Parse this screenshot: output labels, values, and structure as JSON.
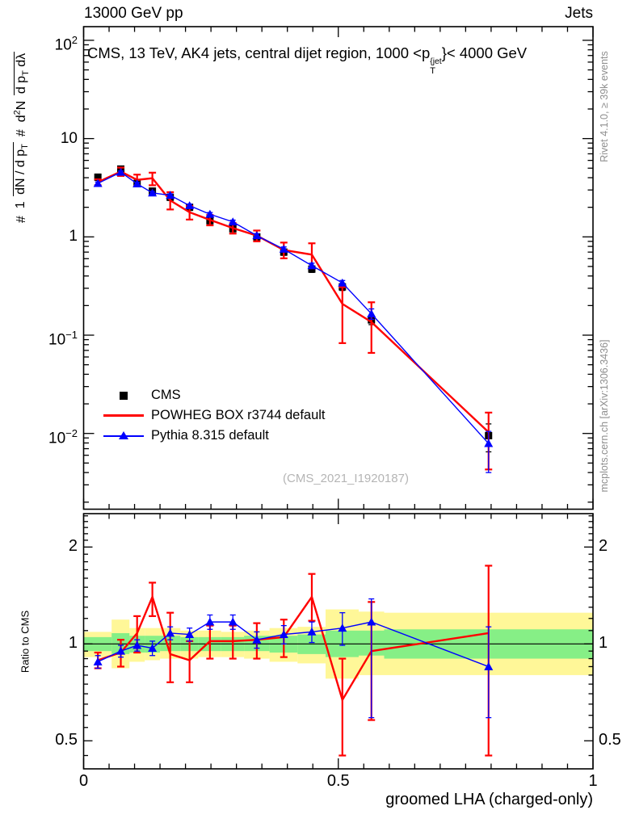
{
  "header": {
    "left": "13000 GeV pp",
    "right": "Jets"
  },
  "plot_title": {
    "pre": "CMS, 13 TeV, AK4 jets, central dijet region, 1000 <p",
    "sup": "{jet",
    "sub": "T",
    "post": "}< 4000 GeV"
  },
  "y_axis_label": {
    "hash1": "#",
    "frac1_num": "1",
    "frac1_den_pre": "dN / d p",
    "frac1_den_sub": "T",
    "hash2": "#",
    "frac2_num_pre": "d",
    "frac2_num_sup": "2",
    "frac2_num_post": "N",
    "frac2_den_pre": "d p",
    "frac2_den_sub": "T",
    "frac2_den_post": " dλ"
  },
  "x_axis_label": "groomed LHA (charged-only)",
  "ratio_axis_label": "Ratio to CMS",
  "credits": {
    "top": "Rivet 4.1.0, ≥ 39k events",
    "bottom": "mcplots.cern.ch [arXiv:1306.3436]"
  },
  "watermark": "(CMS_2021_I1920187)",
  "legend": {
    "items": [
      {
        "label": "CMS",
        "marker": "square"
      },
      {
        "label": "POWHEG BOX r3744 default",
        "marker": "line"
      },
      {
        "label": "Pythia 8.315 default",
        "marker": "triangle-line"
      }
    ]
  },
  "colors": {
    "cms": "#000000",
    "powheg": "#ff0000",
    "pythia": "#0000ff",
    "band_yellow": "#fff798",
    "band_green": "#86ef86",
    "credits": "#8f8f8f",
    "watermark": "#b5b5b5"
  },
  "axes": {
    "x_ticks": [
      {
        "v": 0,
        "label": "0"
      },
      {
        "v": 0.5,
        "label": "0.5"
      },
      {
        "v": 1,
        "label": "1"
      }
    ],
    "main_y_ticks": [
      {
        "v": 100,
        "base": "10",
        "exp": "2"
      },
      {
        "v": 10,
        "base": "10",
        "exp": ""
      },
      {
        "v": 1,
        "base": "1",
        "exp": ""
      },
      {
        "v": 0.1,
        "base": "10",
        "exp": "−1"
      },
      {
        "v": 0.01,
        "base": "10",
        "exp": "−2"
      }
    ],
    "ratio_y_ticks": [
      {
        "v": 2,
        "label": "2"
      },
      {
        "v": 1,
        "label": "1"
      },
      {
        "v": 0.5,
        "label": "0.5"
      }
    ]
  },
  "chart_data": {
    "type": "line",
    "title": "CMS, 13 TeV, AK4 jets, central dijet region, 1000 <p_T^{jet}< 4000 GeV",
    "xlabel": "groomed LHA (charged-only)",
    "ylabel": "# 1/(dN/dp_T) # d2N/(dp_T dlambda)",
    "ratio_ylabel": "Ratio to CMS",
    "x_range": [
      0,
      1
    ],
    "y_scale": "log",
    "y_range_main": [
      0.0017,
      137
    ],
    "ratio_scale": "log",
    "ratio_range": [
      0.41,
      2.54
    ],
    "legend_position": "left-middle",
    "grid": false,
    "bin_edges": [
      0,
      0.055,
      0.09,
      0.12,
      0.15,
      0.19,
      0.225,
      0.27,
      0.315,
      0.365,
      0.42,
      0.475,
      0.54,
      0.59,
      1.0
    ],
    "x": [
      0.028,
      0.073,
      0.105,
      0.135,
      0.17,
      0.208,
      0.248,
      0.293,
      0.34,
      0.393,
      0.448,
      0.508,
      0.565,
      0.795
    ],
    "series": [
      {
        "name": "CMS",
        "role": "data",
        "marker": "square",
        "color": "#000000",
        "values": [
          4.05,
          4.9,
          3.5,
          2.92,
          2.53,
          2.0,
          1.46,
          1.21,
          1.0,
          0.7,
          0.47,
          0.31,
          0.143,
          0.0095
        ],
        "yerr": [
          0.3,
          0.35,
          0.26,
          0.21,
          0.18,
          0.14,
          0.1,
          0.085,
          0.07,
          0.05,
          0.035,
          0.025,
          0.015,
          0.003
        ]
      },
      {
        "name": "POWHEG BOX r3744 default",
        "role": "mc",
        "marker": "none",
        "color": "#ff0000",
        "values": [
          3.6,
          4.62,
          3.8,
          3.95,
          2.35,
          1.78,
          1.49,
          1.23,
          1.03,
          0.735,
          0.66,
          0.208,
          0.136,
          0.0103
        ],
        "yerr": [
          [
            0.25,
            0.25
          ],
          [
            0.45,
            0.45
          ],
          [
            0.5,
            0.5
          ],
          [
            0.55,
            0.6
          ],
          [
            0.5,
            0.45
          ],
          [
            0.28,
            0.28
          ],
          [
            0.18,
            0.18
          ],
          [
            0.15,
            0.15
          ],
          [
            0.13,
            0.13
          ],
          [
            0.14,
            0.13
          ],
          [
            0.2,
            0.18
          ],
          [
            0.1,
            0.125
          ],
          [
            0.08,
            0.07
          ],
          [
            0.006,
            0.006
          ]
        ],
        "ratio": [
          0.89,
          0.94,
          1.08,
          1.4,
          0.93,
          0.89,
          1.02,
          1.02,
          1.03,
          1.05,
          1.4,
          0.67,
          0.95,
          1.08
        ],
        "ratio_err": [
          [
            0.05,
            0.05
          ],
          [
            0.09,
            0.09
          ],
          [
            0.14,
            0.14
          ],
          [
            0.15,
            0.18
          ],
          [
            0.32,
            0.17
          ],
          [
            0.13,
            0.13
          ],
          [
            0.12,
            0.12
          ],
          [
            0.12,
            0.12
          ],
          [
            0.13,
            0.13
          ],
          [
            0.14,
            0.14
          ],
          [
            0.25,
            0.22
          ],
          [
            0.23,
            0.22
          ],
          [
            0.4,
            0.37
          ],
          [
            0.67,
            0.63
          ]
        ]
      },
      {
        "name": "Pythia 8.315 default",
        "role": "mc",
        "marker": "triangle",
        "color": "#0000ff",
        "values": [
          3.5,
          4.55,
          3.47,
          2.8,
          2.65,
          2.08,
          1.7,
          1.42,
          1.03,
          0.75,
          0.51,
          0.34,
          0.165,
          0.0079
        ],
        "yerr": [
          [
            0.12,
            0.12
          ],
          [
            0.14,
            0.14
          ],
          [
            0.12,
            0.12
          ],
          [
            0.1,
            0.1
          ],
          [
            0.09,
            0.09
          ],
          [
            0.08,
            0.08
          ],
          [
            0.07,
            0.07
          ],
          [
            0.06,
            0.06
          ],
          [
            0.05,
            0.05
          ],
          [
            0.04,
            0.04
          ],
          [
            0.03,
            0.03
          ],
          [
            0.02,
            0.02
          ],
          [
            0.02,
            0.02
          ],
          [
            0.0026,
            0.0039
          ]
        ],
        "ratio": [
          0.88,
          0.95,
          0.99,
          0.97,
          1.08,
          1.07,
          1.17,
          1.17,
          1.03,
          1.07,
          1.09,
          1.12,
          1.17,
          0.85
        ],
        "ratio_err": [
          [
            0.04,
            0.04
          ],
          [
            0.04,
            0.04
          ],
          [
            0.04,
            0.04
          ],
          [
            0.05,
            0.05
          ],
          [
            0.05,
            0.05
          ],
          [
            0.05,
            0.05
          ],
          [
            0.06,
            0.06
          ],
          [
            0.06,
            0.06
          ],
          [
            0.06,
            0.06
          ],
          [
            0.07,
            0.07
          ],
          [
            0.08,
            0.08
          ],
          [
            0.13,
            0.13
          ],
          [
            0.21,
            0.58
          ],
          [
            0.28,
            0.26
          ]
        ]
      }
    ],
    "uncertainty_bands": {
      "yellow": [
        [
          0.91,
          1.09
        ],
        [
          0.84,
          1.19
        ],
        [
          0.88,
          1.12
        ],
        [
          0.89,
          1.12
        ],
        [
          0.9,
          1.12
        ],
        [
          0.9,
          1.1
        ],
        [
          0.91,
          1.1
        ],
        [
          0.91,
          1.09
        ],
        [
          0.9,
          1.1
        ],
        [
          0.88,
          1.12
        ],
        [
          0.87,
          1.13
        ],
        [
          0.78,
          1.28
        ],
        [
          0.8,
          1.26
        ],
        [
          0.8,
          1.25
        ]
      ],
      "green": [
        [
          0.95,
          1.05
        ],
        [
          0.93,
          1.08
        ],
        [
          0.94,
          1.06
        ],
        [
          0.94,
          1.06
        ],
        [
          0.95,
          1.06
        ],
        [
          0.95,
          1.05
        ],
        [
          0.95,
          1.05
        ],
        [
          0.95,
          1.05
        ],
        [
          0.95,
          1.06
        ],
        [
          0.94,
          1.06
        ],
        [
          0.93,
          1.07
        ],
        [
          0.91,
          1.1
        ],
        [
          0.92,
          1.1
        ],
        [
          0.9,
          1.11
        ]
      ]
    }
  }
}
